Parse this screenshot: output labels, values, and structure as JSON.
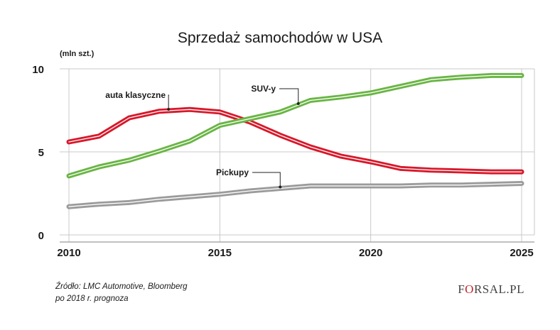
{
  "chart_data": {
    "type": "line",
    "title": "Sprzedaż samochodów w USA",
    "unit_label": "(mln szt.)",
    "xlim": [
      2010,
      2025
    ],
    "ylim": [
      0,
      10
    ],
    "x_ticks": [
      2010,
      2015,
      2020,
      2025
    ],
    "y_ticks": [
      0,
      5,
      10
    ],
    "grid": true,
    "series": [
      {
        "name": "auta klasyczne",
        "color": "#d7192b",
        "x": [
          2010,
          2011,
          2012,
          2013,
          2014,
          2015,
          2016,
          2017,
          2018,
          2019,
          2020,
          2021,
          2022,
          2023,
          2024,
          2025
        ],
        "values": [
          5.6,
          5.95,
          7.05,
          7.45,
          7.55,
          7.4,
          6.8,
          6.0,
          5.3,
          4.75,
          4.4,
          4.0,
          3.9,
          3.85,
          3.8,
          3.8
        ]
      },
      {
        "name": "SUV-y",
        "color": "#6ab545",
        "x": [
          2010,
          2011,
          2012,
          2013,
          2014,
          2015,
          2016,
          2017,
          2018,
          2019,
          2020,
          2021,
          2022,
          2023,
          2024,
          2025
        ],
        "values": [
          3.55,
          4.1,
          4.5,
          5.05,
          5.65,
          6.6,
          7.0,
          7.4,
          8.1,
          8.3,
          8.55,
          8.95,
          9.35,
          9.5,
          9.6,
          9.6
        ]
      },
      {
        "name": "Pickupy",
        "color": "#9b9b9b",
        "x": [
          2010,
          2011,
          2012,
          2013,
          2014,
          2015,
          2016,
          2017,
          2018,
          2019,
          2020,
          2021,
          2022,
          2023,
          2024,
          2025
        ],
        "values": [
          1.7,
          1.85,
          1.95,
          2.15,
          2.3,
          2.45,
          2.65,
          2.8,
          2.95,
          2.95,
          2.95,
          2.95,
          3.0,
          3.0,
          3.05,
          3.1
        ]
      }
    ],
    "annotations": [
      {
        "text": "auta klasyczne",
        "series": 0,
        "x": 2013.3
      },
      {
        "text": "SUV-y",
        "series": 1,
        "x": 2017.6
      },
      {
        "text": "Pickupy",
        "series": 2,
        "x": 2017.0
      }
    ]
  },
  "footer": {
    "source_line1": "Źródło:  LMC Automotive, Bloomberg",
    "source_line2": "po 2018 r. prognoza"
  },
  "logo": {
    "part1": "F",
    "part2": "O",
    "part3": "RSAL.PL"
  }
}
